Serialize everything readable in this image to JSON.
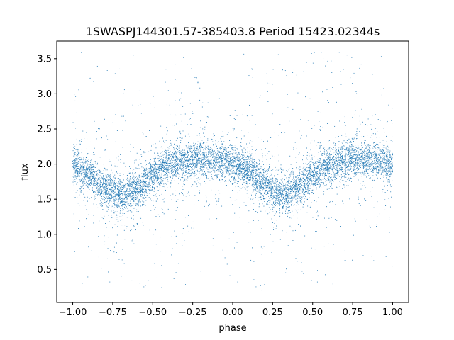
{
  "chart_data": {
    "type": "scatter",
    "title": "1SWASPJ144301.57-385403.8 Period 15423.02344s",
    "xlabel": "phase",
    "ylabel": "flux",
    "xlim": [
      -1.1,
      1.1
    ],
    "ylim": [
      0.03,
      3.75
    ],
    "xticks": [
      -1.0,
      -0.75,
      -0.5,
      -0.25,
      0.0,
      0.25,
      0.5,
      0.75,
      1.0
    ],
    "xtick_labels": [
      "−1.00",
      "−0.75",
      "−0.50",
      "−0.25",
      "0.00",
      "0.25",
      "0.50",
      "0.75",
      "1.00"
    ],
    "yticks": [
      0.5,
      1.0,
      1.5,
      2.0,
      2.5,
      3.0,
      3.5
    ],
    "ytick_labels": [
      "0.5",
      "1.0",
      "1.5",
      "2.0",
      "2.5",
      "3.0",
      "3.5"
    ],
    "grid": false,
    "legend": "none",
    "point_color": "#1f77b4",
    "series": [
      {
        "x_range": [
          -1.0,
          1.0
        ],
        "y_range": [
          0.2,
          3.6
        ],
        "curve": {
          "phase": [
            -1.0,
            -0.9,
            -0.8,
            -0.7,
            -0.6,
            -0.5,
            -0.4,
            -0.3,
            -0.2,
            -0.1,
            0.0,
            0.1,
            0.2,
            0.3,
            0.4,
            0.5,
            0.6,
            0.7,
            0.8,
            0.9,
            1.0
          ],
          "flux": [
            1.98,
            1.85,
            1.65,
            1.55,
            1.65,
            1.85,
            1.98,
            2.05,
            2.08,
            2.05,
            2.0,
            1.92,
            1.72,
            1.55,
            1.65,
            1.85,
            1.98,
            2.05,
            2.08,
            2.05,
            2.0
          ]
        }
      }
    ]
  }
}
